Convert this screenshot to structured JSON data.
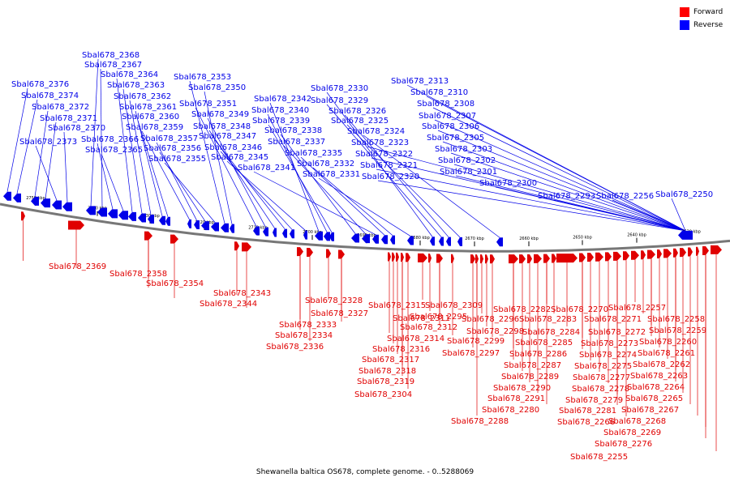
{
  "caption": "Shewanella baltica OS678, complete genome. - 0..5288069",
  "legend": [
    {
      "label": "Forward",
      "color": "#ff0000"
    },
    {
      "label": "Reverse",
      "color": "#0000ff"
    }
  ],
  "colors": {
    "forward": "#e00000",
    "reverse": "#0000e8",
    "backbone": "#777777"
  },
  "scale_ticks": [
    "2750 kbp",
    "2740 kbp",
    "2730 kbp",
    "2720 kbp",
    "2710 kbp",
    "2700 kbp",
    "2690 kbp",
    "2680 kbp",
    "2670 kbp",
    "2660 kbp",
    "2650 kbp",
    "2640 kbp",
    "2630 kbp"
  ],
  "reverse_genes": [
    "Sbal678_2376",
    "Sbal678_2374",
    "Sbal678_2372",
    "Sbal678_2371",
    "Sbal678_2373",
    "Sbal678_2370",
    "Sbal678_2368",
    "Sbal678_2367",
    "Sbal678_2366",
    "Sbal678_2365",
    "Sbal678_2364",
    "Sbal678_2363",
    "Sbal678_2362",
    "Sbal678_2361",
    "Sbal678_2360",
    "Sbal678_2359",
    "Sbal678_2357",
    "Sbal678_2356",
    "Sbal678_2355",
    "Sbal678_2353",
    "Sbal678_2350",
    "Sbal678_2351",
    "Sbal678_2349",
    "Sbal678_2348",
    "Sbal678_2347",
    "Sbal678_2346",
    "Sbal678_2345",
    "Sbal678_2342",
    "Sbal678_2340",
    "Sbal678_2339",
    "Sbal678_2338",
    "Sbal678_2337",
    "Sbal678_2341",
    "Sbal678_2335",
    "Sbal678_2332",
    "Sbal678_2331",
    "Sbal678_2330",
    "Sbal678_2329",
    "Sbal678_2326",
    "Sbal678_2325",
    "Sbal678_2324",
    "Sbal678_2323",
    "Sbal678_2322",
    "Sbal678_2321",
    "Sbal678_2320",
    "Sbal678_2313",
    "Sbal678_2310",
    "Sbal678_2308",
    "Sbal678_2307",
    "Sbal678_2306",
    "Sbal678_2305",
    "Sbal678_2303",
    "Sbal678_2302",
    "Sbal678_2301",
    "Sbal678_2300",
    "Sbal678_2293",
    "Sbal678_2256",
    "Sbal678_2250"
  ],
  "forward_genes": [
    "Sbal678_2369",
    "Sbal678_2358",
    "Sbal678_2354",
    "Sbal678_2343",
    "Sbal678_2344",
    "Sbal678_2328",
    "Sbal678_2327",
    "Sbal678_2333",
    "Sbal678_2334",
    "Sbal678_2336",
    "Sbal678_2315",
    "Sbal678_2311",
    "Sbal678_2312",
    "Sbal678_2314",
    "Sbal678_2316",
    "Sbal678_2317",
    "Sbal678_2318",
    "Sbal678_2319",
    "Sbal678_2304",
    "Sbal678_2309",
    "Sbal678_2295",
    "Sbal678_2296",
    "Sbal678_2298",
    "Sbal678_2299",
    "Sbal678_2297",
    "Sbal678_2288",
    "Sbal678_2282",
    "Sbal678_2283",
    "Sbal678_2284",
    "Sbal678_2285",
    "Sbal678_2286",
    "Sbal678_2287",
    "Sbal678_2289",
    "Sbal678_2290",
    "Sbal678_2291",
    "Sbal678_2280",
    "Sbal678_2270",
    "Sbal678_2271",
    "Sbal678_2272",
    "Sbal678_2273",
    "Sbal678_2274",
    "Sbal678_2275",
    "Sbal678_2277",
    "Sbal678_2278",
    "Sbal678_2279",
    "Sbal678_2281",
    "Sbal678_2266",
    "Sbal678_2257",
    "Sbal678_2258",
    "Sbal678_2259",
    "Sbal678_2260",
    "Sbal678_2261",
    "Sbal678_2262",
    "Sbal678_2263",
    "Sbal678_2264",
    "Sbal678_2265",
    "Sbal678_2267",
    "Sbal678_2268",
    "Sbal678_2269",
    "Sbal678_2276",
    "Sbal678_2255"
  ]
}
